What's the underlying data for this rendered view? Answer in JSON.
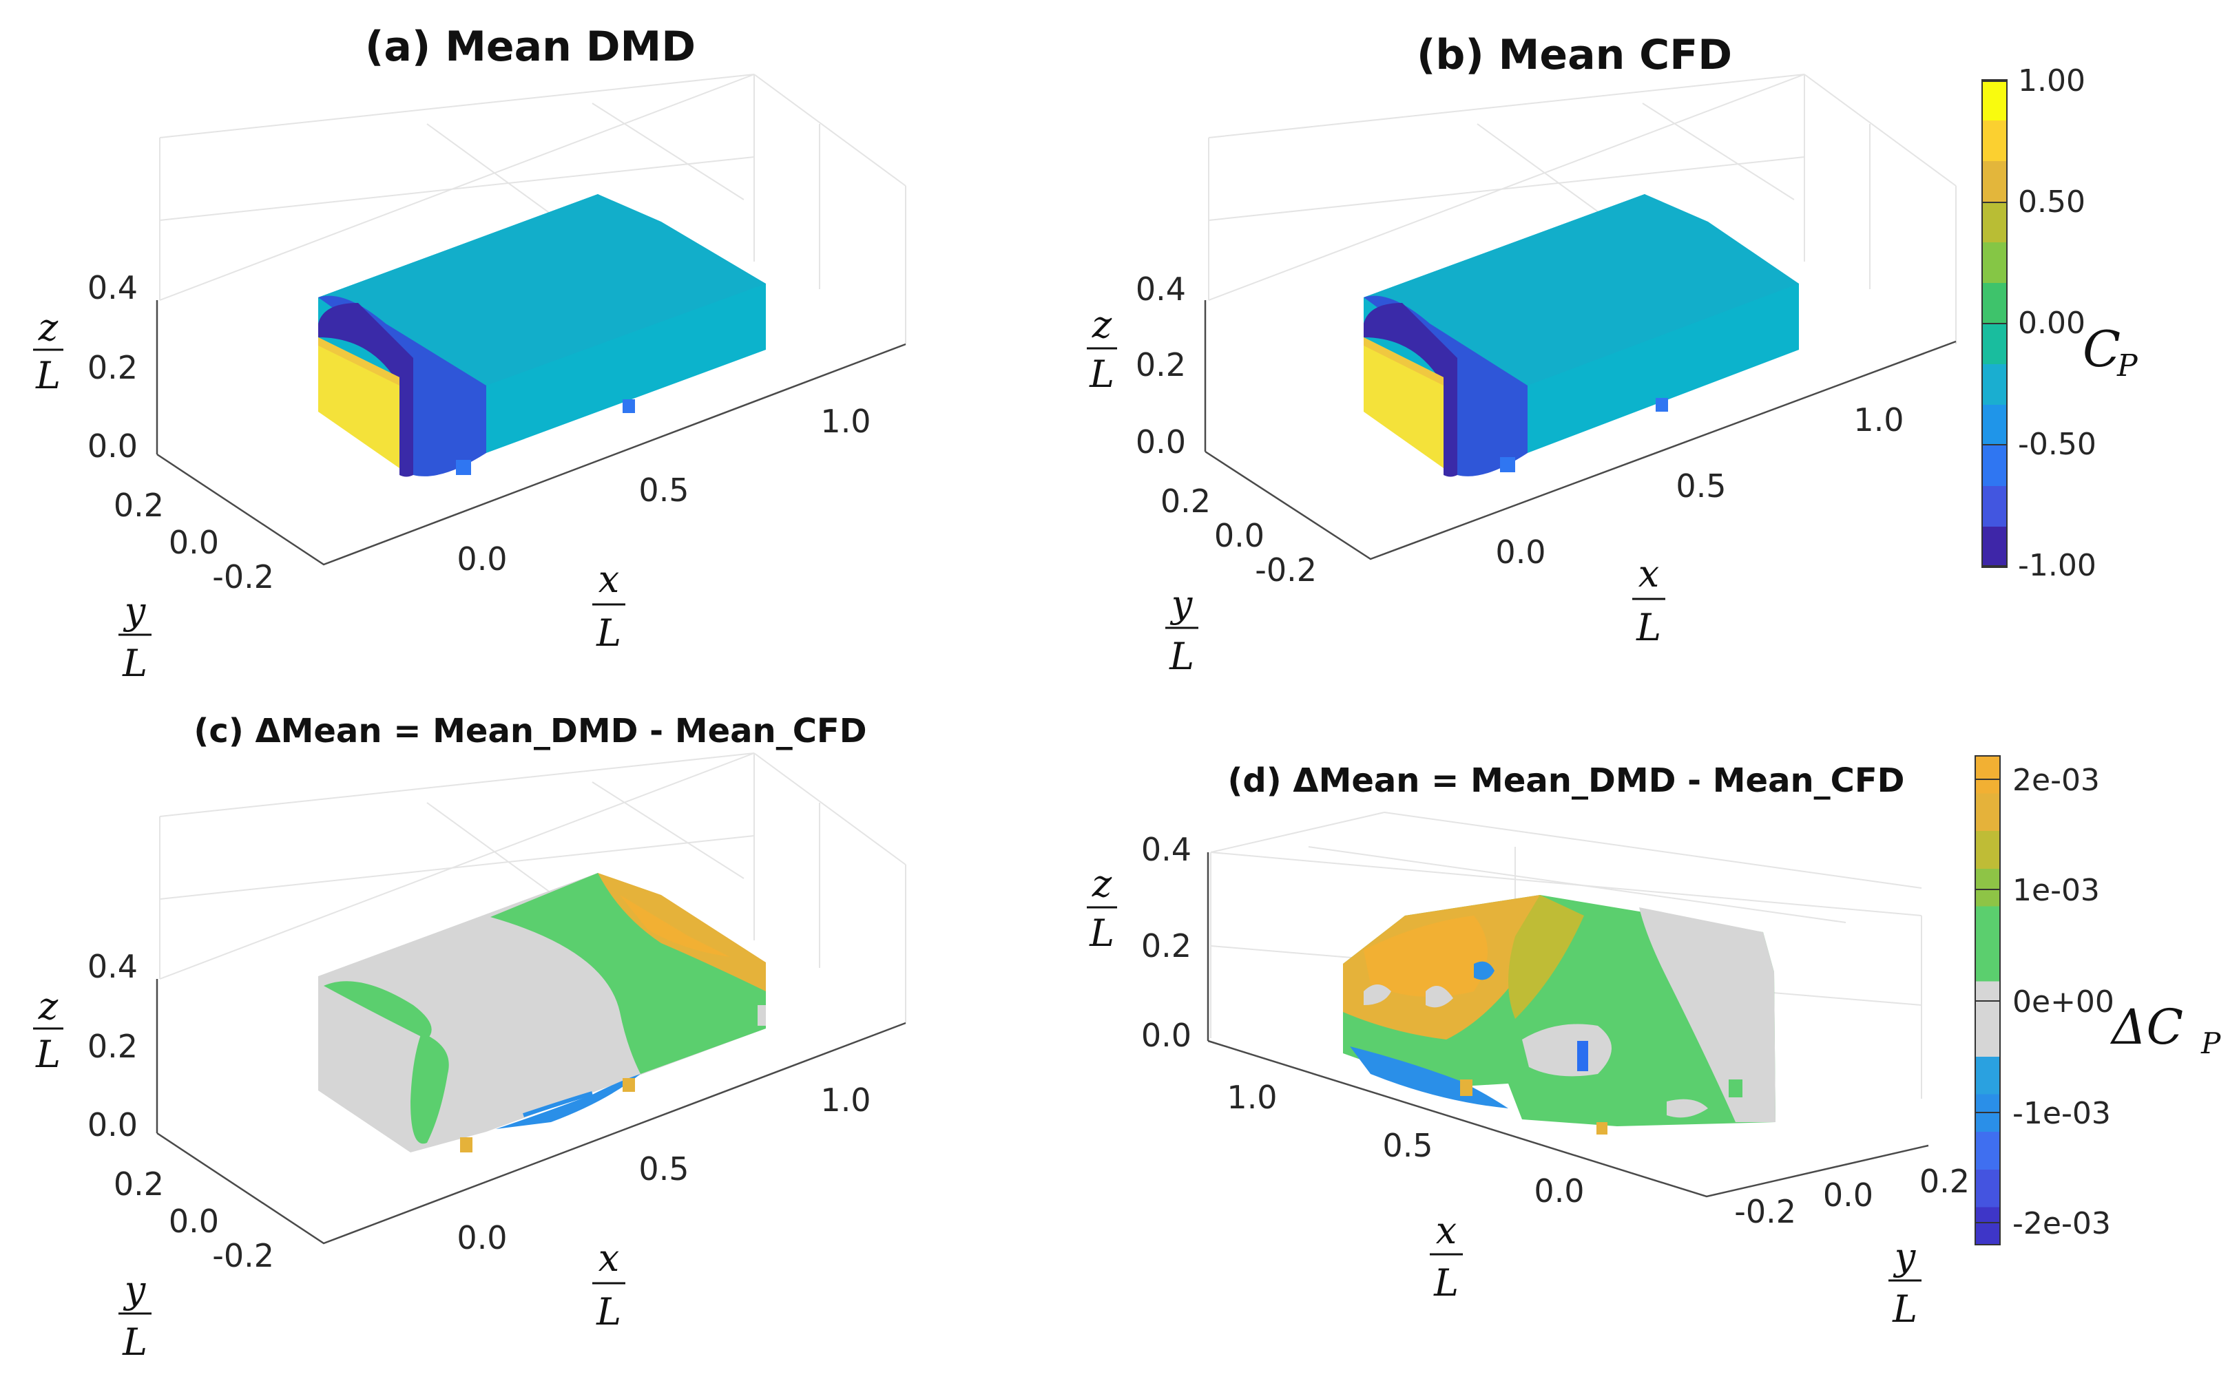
{
  "chart_data": [
    {
      "panel": "a",
      "type": "surface3d",
      "title": "(a) Mean DMD",
      "quantity": "C_P",
      "axes": {
        "x": {
          "label_num": "x",
          "label_den": "L",
          "ticks": [
            "0.0",
            "0.5",
            "1.0"
          ]
        },
        "y": {
          "label_num": "y",
          "label_den": "L",
          "ticks": [
            "0.2",
            "0.0",
            "-0.2"
          ]
        },
        "z": {
          "label_num": "z",
          "label_den": "L",
          "ticks": [
            "0.4",
            "0.2",
            "0.0"
          ]
        }
      },
      "grid": true
    },
    {
      "panel": "b",
      "type": "surface3d",
      "title": "(b) Mean CFD",
      "quantity": "C_P",
      "axes": {
        "x": {
          "label_num": "x",
          "label_den": "L",
          "ticks": [
            "0.0",
            "0.5",
            "1.0"
          ]
        },
        "y": {
          "label_num": "y",
          "label_den": "L",
          "ticks": [
            "0.2",
            "0.0",
            "-0.2"
          ]
        },
        "z": {
          "label_num": "z",
          "label_den": "L",
          "ticks": [
            "0.4",
            "0.2",
            "0.0"
          ]
        }
      },
      "grid": true,
      "colorbar": {
        "label_main": "C",
        "label_sub": "P",
        "range": [
          -1.0,
          1.0
        ],
        "ticks": [
          "1.00",
          "0.50",
          "0.00",
          "-0.50",
          "-1.00"
        ],
        "colors": [
          "#f9fb0e",
          "#fbd030",
          "#e3b63b",
          "#b9bd34",
          "#85c645",
          "#3ec36b",
          "#19bd9e",
          "#1aaed0",
          "#1f95e9",
          "#2f76f2",
          "#4256e0",
          "#3e26a8"
        ]
      }
    },
    {
      "panel": "c",
      "type": "surface3d",
      "title": "(c) ΔMean = Mean_DMD - Mean_CFD",
      "quantity": "ΔC_P",
      "axes": {
        "x": {
          "label_num": "x",
          "label_den": "L",
          "ticks": [
            "0.0",
            "0.5",
            "1.0"
          ]
        },
        "y": {
          "label_num": "y",
          "label_den": "L",
          "ticks": [
            "0.2",
            "0.0",
            "-0.2"
          ]
        },
        "z": {
          "label_num": "z",
          "label_den": "L",
          "ticks": [
            "0.4",
            "0.2",
            "0.0"
          ]
        }
      },
      "grid": true
    },
    {
      "panel": "d",
      "type": "surface3d",
      "title": "(d) ΔMean = Mean_DMD - Mean_CFD",
      "quantity": "ΔC_P",
      "axes": {
        "x": {
          "label_num": "x",
          "label_den": "L",
          "ticks": [
            "1.0",
            "0.5",
            "0.0"
          ]
        },
        "y": {
          "label_num": "y",
          "label_den": "L",
          "ticks": [
            "-0.2",
            "0.0",
            "0.2"
          ]
        },
        "z": {
          "label_num": "z",
          "label_den": "L",
          "ticks": [
            "0.4",
            "0.2",
            "0.0"
          ]
        }
      },
      "grid": true,
      "colorbar": {
        "label_main": "ΔC",
        "label_sub": "P",
        "range": [
          -0.0022,
          0.0022
        ],
        "ticks": [
          "2e-03",
          "1e-03",
          "0e+00",
          "-1e-03",
          "-2e-03"
        ],
        "colors": [
          "#f2b033",
          "#e5b23a",
          "#bfbc36",
          "#8ec446",
          "#5bcf6e",
          "#5bcf6e",
          "#d6d6d6",
          "#d6d6d6",
          "#2aa1e0",
          "#2a8fe8",
          "#3f6ff0",
          "#4454e0",
          "#3e36c8"
        ]
      }
    }
  ],
  "surface_colors": {
    "cp_front": "#f4e23a",
    "cp_front_edge": "#f0c840",
    "cp_ring": "#2f56d8",
    "cp_ring_dark": "#3a2aa8",
    "cp_body": "#0cb3cc",
    "cp_top_edge": "#1f8de0",
    "dcp_zero": "#d6d6d6",
    "dcp_green": "#5bcf6e",
    "dcp_yellow": "#e5b23a",
    "dcp_orange": "#f2b033",
    "dcp_blue": "#2a8fe8",
    "grid": "#e4e4e4",
    "axis": "#4a4a4a"
  }
}
